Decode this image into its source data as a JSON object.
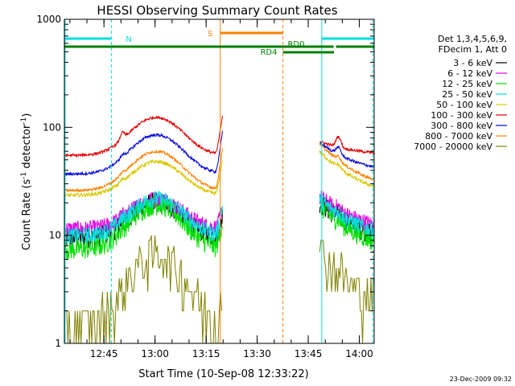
{
  "chart_data": {
    "type": "line",
    "title": "HESSI Observing Summary Count Rates",
    "xlabel": "Start Time (10-Sep-08 12:33:22)",
    "ylabel_main": "Count Rate (s",
    "ylabel_sup1": "-1",
    "ylabel_mid": " detector",
    "ylabel_sup2": "-1",
    "ylabel_end": ")",
    "yscale": "log",
    "ylim": [
      1,
      1000
    ],
    "xlim_minutes": [
      0,
      91
    ],
    "x_ticks": [
      {
        "label": "12:45",
        "min": 11.63
      },
      {
        "label": "13:00",
        "min": 26.63
      },
      {
        "label": "13:15",
        "min": 41.63
      },
      {
        "label": "13:30",
        "min": 56.63
      },
      {
        "label": "13:45",
        "min": 71.63
      },
      {
        "label": "14:00",
        "min": 86.63
      }
    ],
    "y_ticks": [
      {
        "label": "1",
        "v": 1
      },
      {
        "label": "10",
        "v": 10
      },
      {
        "label": "100",
        "v": 100
      },
      {
        "label": "1000",
        "v": 1000
      }
    ],
    "legend_title": [
      "Det 1,3,4,5,6,9,",
      "FDecim 1, Att 0"
    ],
    "series": [
      {
        "name": "3 - 6 keV",
        "color": "#000000"
      },
      {
        "name": "6 - 12 keV",
        "color": "#e000e0"
      },
      {
        "name": "12 - 25 keV",
        "color": "#00e000"
      },
      {
        "name": "25 - 50 keV",
        "color": "#00e0e0"
      },
      {
        "name": "50 - 100 keV",
        "color": "#d8c800"
      },
      {
        "name": "100 - 300 keV",
        "color": "#e00000"
      },
      {
        "name": "300 - 800 keV",
        "color": "#0000e0"
      },
      {
        "name": "800 - 7000 keV",
        "color": "#ff7f00"
      },
      {
        "name": "7000 - 20000 keV",
        "color": "#808000"
      }
    ],
    "segments": [
      {
        "start": 0,
        "end": 46.5
      },
      {
        "start": 75,
        "end": 91
      }
    ],
    "annotations": [
      {
        "label": "N",
        "color": "#00e0e0"
      },
      {
        "label": "S",
        "color": "#ff7f00"
      },
      {
        "label": "RD0",
        "color": "#008000"
      },
      {
        "label": "RD4",
        "color": "#008000"
      }
    ],
    "timestamp": "23-Dec-2009 09:32"
  }
}
